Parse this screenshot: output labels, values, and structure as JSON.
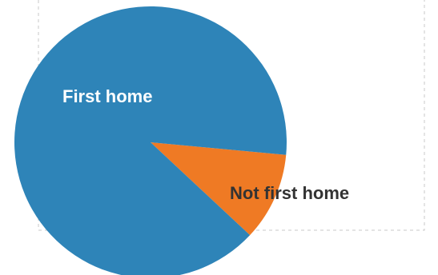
{
  "chart_data": {
    "type": "pie",
    "title": "",
    "grid": false,
    "legend": "none",
    "slices": [
      {
        "label": "First home",
        "value": 89.5,
        "color": "#2e84b8",
        "label_color": "#ffffff"
      },
      {
        "label": "Not first home",
        "value": 10.5,
        "color": "#ef7a24",
        "label_color": "#333333"
      }
    ],
    "frame_border_color": "#c8c8c8"
  }
}
